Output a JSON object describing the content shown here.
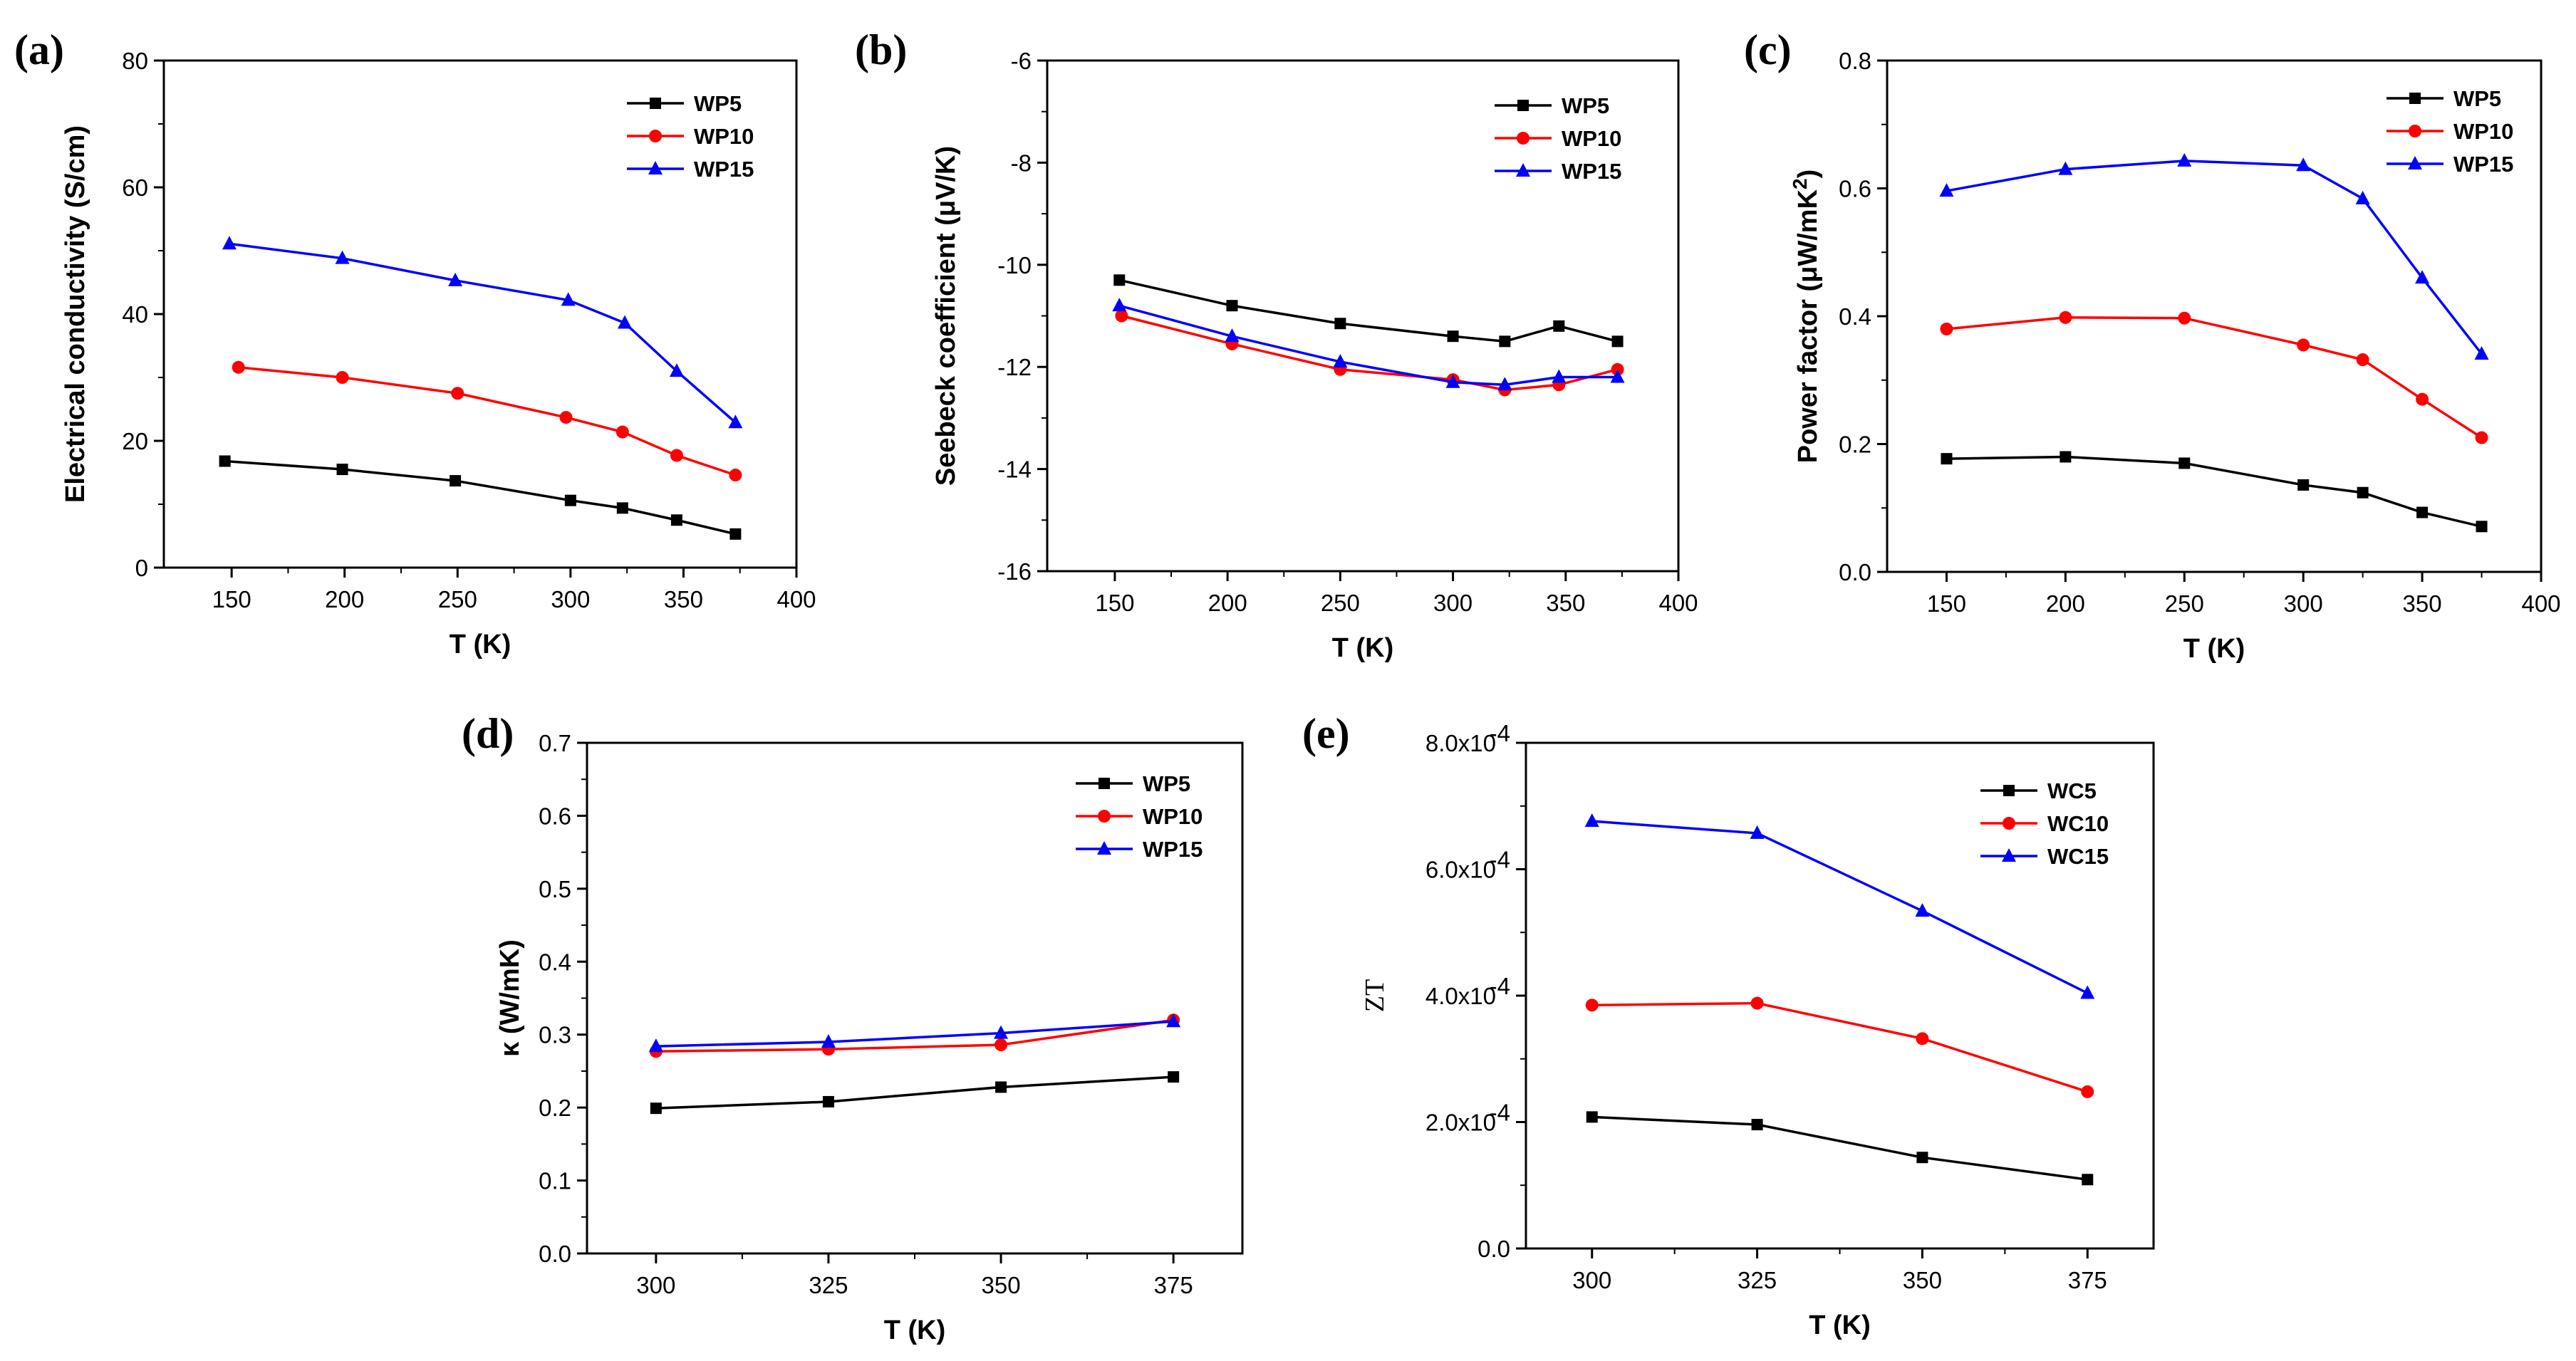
{
  "chart_data": [
    {
      "panel": "(a)",
      "type": "line",
      "title": "",
      "xlabel": "T (K)",
      "ylabel": "Electrical conductivity (S/cm)",
      "xlim": [
        120,
        400
      ],
      "ylim": [
        0,
        80
      ],
      "xticks": [
        150,
        200,
        250,
        300,
        350,
        400
      ],
      "yticks": [
        0,
        20,
        40,
        60,
        80
      ],
      "xtick_labels": [
        "150",
        "200",
        "250",
        "300",
        "350",
        "400"
      ],
      "ytick_labels": [
        "0",
        "20",
        "40",
        "60",
        "80"
      ],
      "legend_position": "top-right",
      "series": [
        {
          "name": "WP5",
          "color": "#000000",
          "marker": "square",
          "x": [
            147,
            199,
            249,
            300,
            323,
            347,
            373
          ],
          "y": [
            16.8,
            15.5,
            13.7,
            10.6,
            9.4,
            7.5,
            5.3
          ]
        },
        {
          "name": "WP10",
          "color": "#ff0000",
          "marker": "circle",
          "x": [
            153,
            199,
            250,
            298,
            323,
            347,
            373
          ],
          "y": [
            31.6,
            30.0,
            27.5,
            23.7,
            21.4,
            17.7,
            14.6
          ]
        },
        {
          "name": "WP15",
          "color": "#0000ff",
          "marker": "triangle",
          "x": [
            149,
            199,
            249,
            299,
            324,
            347,
            373
          ],
          "y": [
            51.1,
            48.8,
            45.3,
            42.2,
            38.6,
            31.0,
            22.9
          ]
        }
      ]
    },
    {
      "panel": "(b)",
      "type": "line",
      "title": "",
      "xlabel": "T (K)",
      "ylabel": "Seebeck coefficient (μV/K)",
      "xlim": [
        120,
        400
      ],
      "ylim": [
        -16,
        -6
      ],
      "xticks": [
        150,
        200,
        250,
        300,
        350,
        400
      ],
      "yticks": [
        -16,
        -14,
        -12,
        -10,
        -8,
        -6
      ],
      "xtick_labels": [
        "150",
        "200",
        "250",
        "300",
        "350",
        "400"
      ],
      "ytick_labels": [
        "-16",
        "-14",
        "-12",
        "-10",
        "-8",
        "-6"
      ],
      "legend_position": "top-right",
      "series": [
        {
          "name": "WP5",
          "color": "#000000",
          "marker": "square",
          "x": [
            152,
            202,
            250,
            300,
            323,
            347,
            373
          ],
          "y": [
            -10.3,
            -10.8,
            -11.15,
            -11.4,
            -11.5,
            -11.2,
            -11.5
          ]
        },
        {
          "name": "WP10",
          "color": "#ff0000",
          "marker": "circle",
          "x": [
            153,
            202,
            250,
            300,
            323,
            347,
            373
          ],
          "y": [
            -11.0,
            -11.55,
            -12.05,
            -12.25,
            -12.45,
            -12.35,
            -12.05
          ]
        },
        {
          "name": "WP15",
          "color": "#0000ff",
          "marker": "triangle",
          "x": [
            152,
            202,
            250,
            300,
            323,
            347,
            373
          ],
          "y": [
            -10.8,
            -11.4,
            -11.9,
            -12.3,
            -12.35,
            -12.2,
            -12.2
          ]
        }
      ]
    },
    {
      "panel": "(c)",
      "type": "line",
      "title": "",
      "xlabel": "T (K)",
      "ylabel": "Power factor (μW/mK²)",
      "ylabel_parts": [
        "Power factor (",
        "μ",
        "W/mK",
        "2",
        ")"
      ],
      "xlim": [
        125,
        400
      ],
      "ylim": [
        0.0,
        0.8
      ],
      "xticks": [
        150,
        200,
        250,
        300,
        350,
        400
      ],
      "yticks": [
        0.0,
        0.2,
        0.4,
        0.6,
        0.8
      ],
      "xtick_labels": [
        "150",
        "200",
        "250",
        "300",
        "350",
        "400"
      ],
      "ytick_labels": [
        "0.0",
        "0.2",
        "0.4",
        "0.6",
        "0.8"
      ],
      "legend_position": "top-right",
      "series": [
        {
          "name": "WP5",
          "color": "#000000",
          "marker": "square",
          "x": [
            150,
            200,
            250,
            300,
            325,
            350,
            375
          ],
          "y": [
            0.177,
            0.18,
            0.17,
            0.136,
            0.124,
            0.093,
            0.071
          ]
        },
        {
          "name": "WP10",
          "color": "#ff0000",
          "marker": "circle",
          "x": [
            150,
            200,
            250,
            300,
            325,
            350,
            375
          ],
          "y": [
            0.38,
            0.398,
            0.397,
            0.355,
            0.332,
            0.27,
            0.21
          ]
        },
        {
          "name": "WP15",
          "color": "#0000ff",
          "marker": "triangle",
          "x": [
            150,
            200,
            250,
            300,
            325,
            350,
            375
          ],
          "y": [
            0.596,
            0.63,
            0.643,
            0.636,
            0.584,
            0.46,
            0.341
          ]
        }
      ]
    },
    {
      "panel": "(d)",
      "type": "line",
      "title": "",
      "xlabel": "T (K)",
      "ylabel": "κ (W/mK)",
      "xlim": [
        290,
        385
      ],
      "ylim": [
        0.0,
        0.7
      ],
      "xticks": [
        300,
        325,
        350,
        375
      ],
      "yticks": [
        0.0,
        0.1,
        0.2,
        0.3,
        0.4,
        0.5,
        0.6,
        0.7
      ],
      "xtick_labels": [
        "300",
        "325",
        "350",
        "375"
      ],
      "ytick_labels": [
        "0.0",
        "0.1",
        "0.2",
        "0.3",
        "0.4",
        "0.5",
        "0.6",
        "0.7"
      ],
      "legend_position": "top-right",
      "series": [
        {
          "name": "WP5",
          "color": "#000000",
          "marker": "square",
          "x": [
            300,
            325,
            350,
            375
          ],
          "y": [
            0.199,
            0.208,
            0.228,
            0.242
          ]
        },
        {
          "name": "WP10",
          "color": "#ff0000",
          "marker": "circle",
          "x": [
            300,
            325,
            350,
            375
          ],
          "y": [
            0.277,
            0.28,
            0.286,
            0.32
          ]
        },
        {
          "name": "WP15",
          "color": "#0000ff",
          "marker": "triangle",
          "x": [
            300,
            325,
            350,
            375
          ],
          "y": [
            0.284,
            0.29,
            0.302,
            0.318
          ]
        }
      ]
    },
    {
      "panel": "(e)",
      "type": "line",
      "title": "",
      "xlabel": "T (K)",
      "ylabel": "ZT",
      "xlim": [
        290,
        385
      ],
      "ylim": [
        0.0,
        0.0008
      ],
      "xticks": [
        300,
        325,
        350,
        375
      ],
      "yticks": [
        0.0,
        0.0002,
        0.0004,
        0.0006,
        0.0008
      ],
      "xtick_labels": [
        "300",
        "325",
        "350",
        "375"
      ],
      "ytick_labels": [
        "0.0",
        "2.0x10",
        "4.0x10",
        "6.0x10",
        "8.0x10"
      ],
      "ytick_exponent": "-4",
      "legend_position": "top-right",
      "series": [
        {
          "name": "WC5",
          "color": "#000000",
          "marker": "square",
          "x": [
            300,
            325,
            350,
            375
          ],
          "y": [
            0.000208,
            0.000196,
            0.000144,
            0.000109
          ]
        },
        {
          "name": "WC10",
          "color": "#ff0000",
          "marker": "circle",
          "x": [
            300,
            325,
            350,
            375
          ],
          "y": [
            0.000385,
            0.000388,
            0.000332,
            0.000248
          ]
        },
        {
          "name": "WC15",
          "color": "#0000ff",
          "marker": "triangle",
          "x": [
            300,
            325,
            350,
            375
          ],
          "y": [
            0.000676,
            0.000657,
            0.000534,
            0.000404
          ]
        }
      ]
    }
  ]
}
